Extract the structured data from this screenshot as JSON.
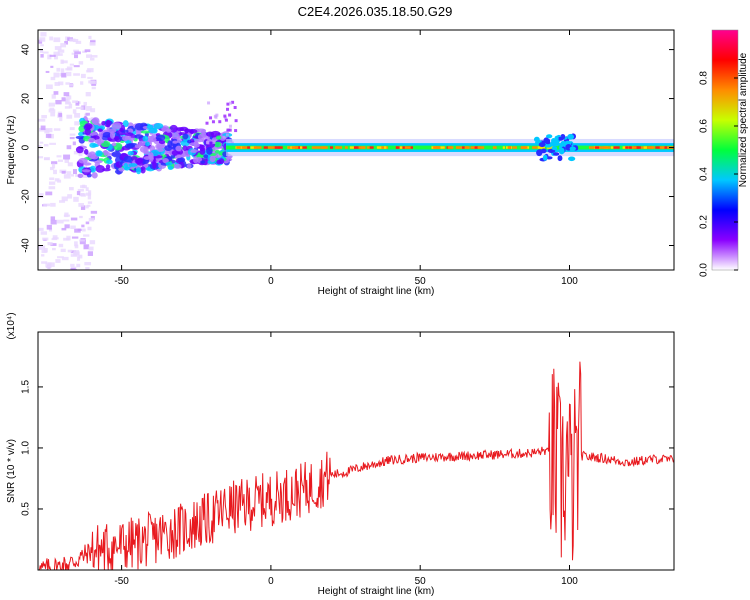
{
  "figure": {
    "title": "C2E4.2026.035.18.50.G29"
  },
  "chart_data": [
    {
      "type": "heatmap",
      "title": "C2E4.2026.035.18.50.G29",
      "xlabel": "Height of straight line (km)",
      "ylabel": "Frequency (Hz)",
      "xlim": [
        -78,
        135
      ],
      "ylim": [
        -50,
        48
      ],
      "x_ticks": [
        -50,
        0,
        50,
        100
      ],
      "y_ticks": [
        -40,
        -20,
        0,
        20,
        40
      ],
      "grid": false,
      "colorbar": {
        "label": "Normalized spectral amplitude",
        "range": [
          0.0,
          1.0
        ],
        "ticks": [
          "0.0",
          "0.2",
          "0.4",
          "0.6",
          "0.8"
        ],
        "colormap": [
          "#ffffff",
          "#8a00ff",
          "#0000ff",
          "#00c8ff",
          "#00ff3c",
          "#c8ff00",
          "#ff8c00",
          "#ff0000",
          "#ff0090"
        ]
      },
      "ridge": {
        "frequency_hz": 0,
        "description_x_ranges": {
          "weak_scattered": [
            -78,
            -62
          ],
          "broad_noisy": [
            -62,
            -15
          ],
          "strong_narrow": [
            -15,
            135
          ]
        }
      }
    },
    {
      "type": "line",
      "xlabel": "Height of straight line (km)",
      "ylabel": "SNR (10 * v/v)",
      "multiplier": "(x10⁴)",
      "xlim": [
        -78,
        135
      ],
      "ylim": [
        0,
        1.95
      ],
      "x_ticks": [
        -50,
        0,
        50,
        100
      ],
      "y_ticks": [
        0.5,
        1.0,
        1.5
      ],
      "grid": false,
      "line_color": "#e8191e",
      "series": [
        {
          "x": [
            -78,
            -70,
            -65,
            -60,
            -55,
            -50,
            -45,
            -40,
            -35,
            -30,
            -25,
            -20,
            -15,
            -10,
            -5,
            0,
            5,
            10,
            15,
            20,
            25,
            30,
            40,
            50,
            60,
            70,
            80,
            88,
            92,
            95,
            97,
            99,
            101,
            103,
            105,
            110,
            115,
            120,
            125,
            130,
            135
          ],
          "values": [
            0.0,
            0.03,
            0.08,
            0.16,
            0.18,
            0.2,
            0.22,
            0.25,
            0.3,
            0.33,
            0.38,
            0.42,
            0.5,
            0.52,
            0.56,
            0.58,
            0.62,
            0.65,
            0.7,
            0.78,
            0.8,
            0.84,
            0.9,
            0.92,
            0.93,
            0.94,
            0.95,
            0.96,
            0.98,
            0.9,
            0.7,
            0.9,
            0.6,
            0.95,
            0.93,
            0.92,
            0.9,
            0.88,
            0.9,
            0.91,
            0.9
          ]
        }
      ]
    }
  ]
}
